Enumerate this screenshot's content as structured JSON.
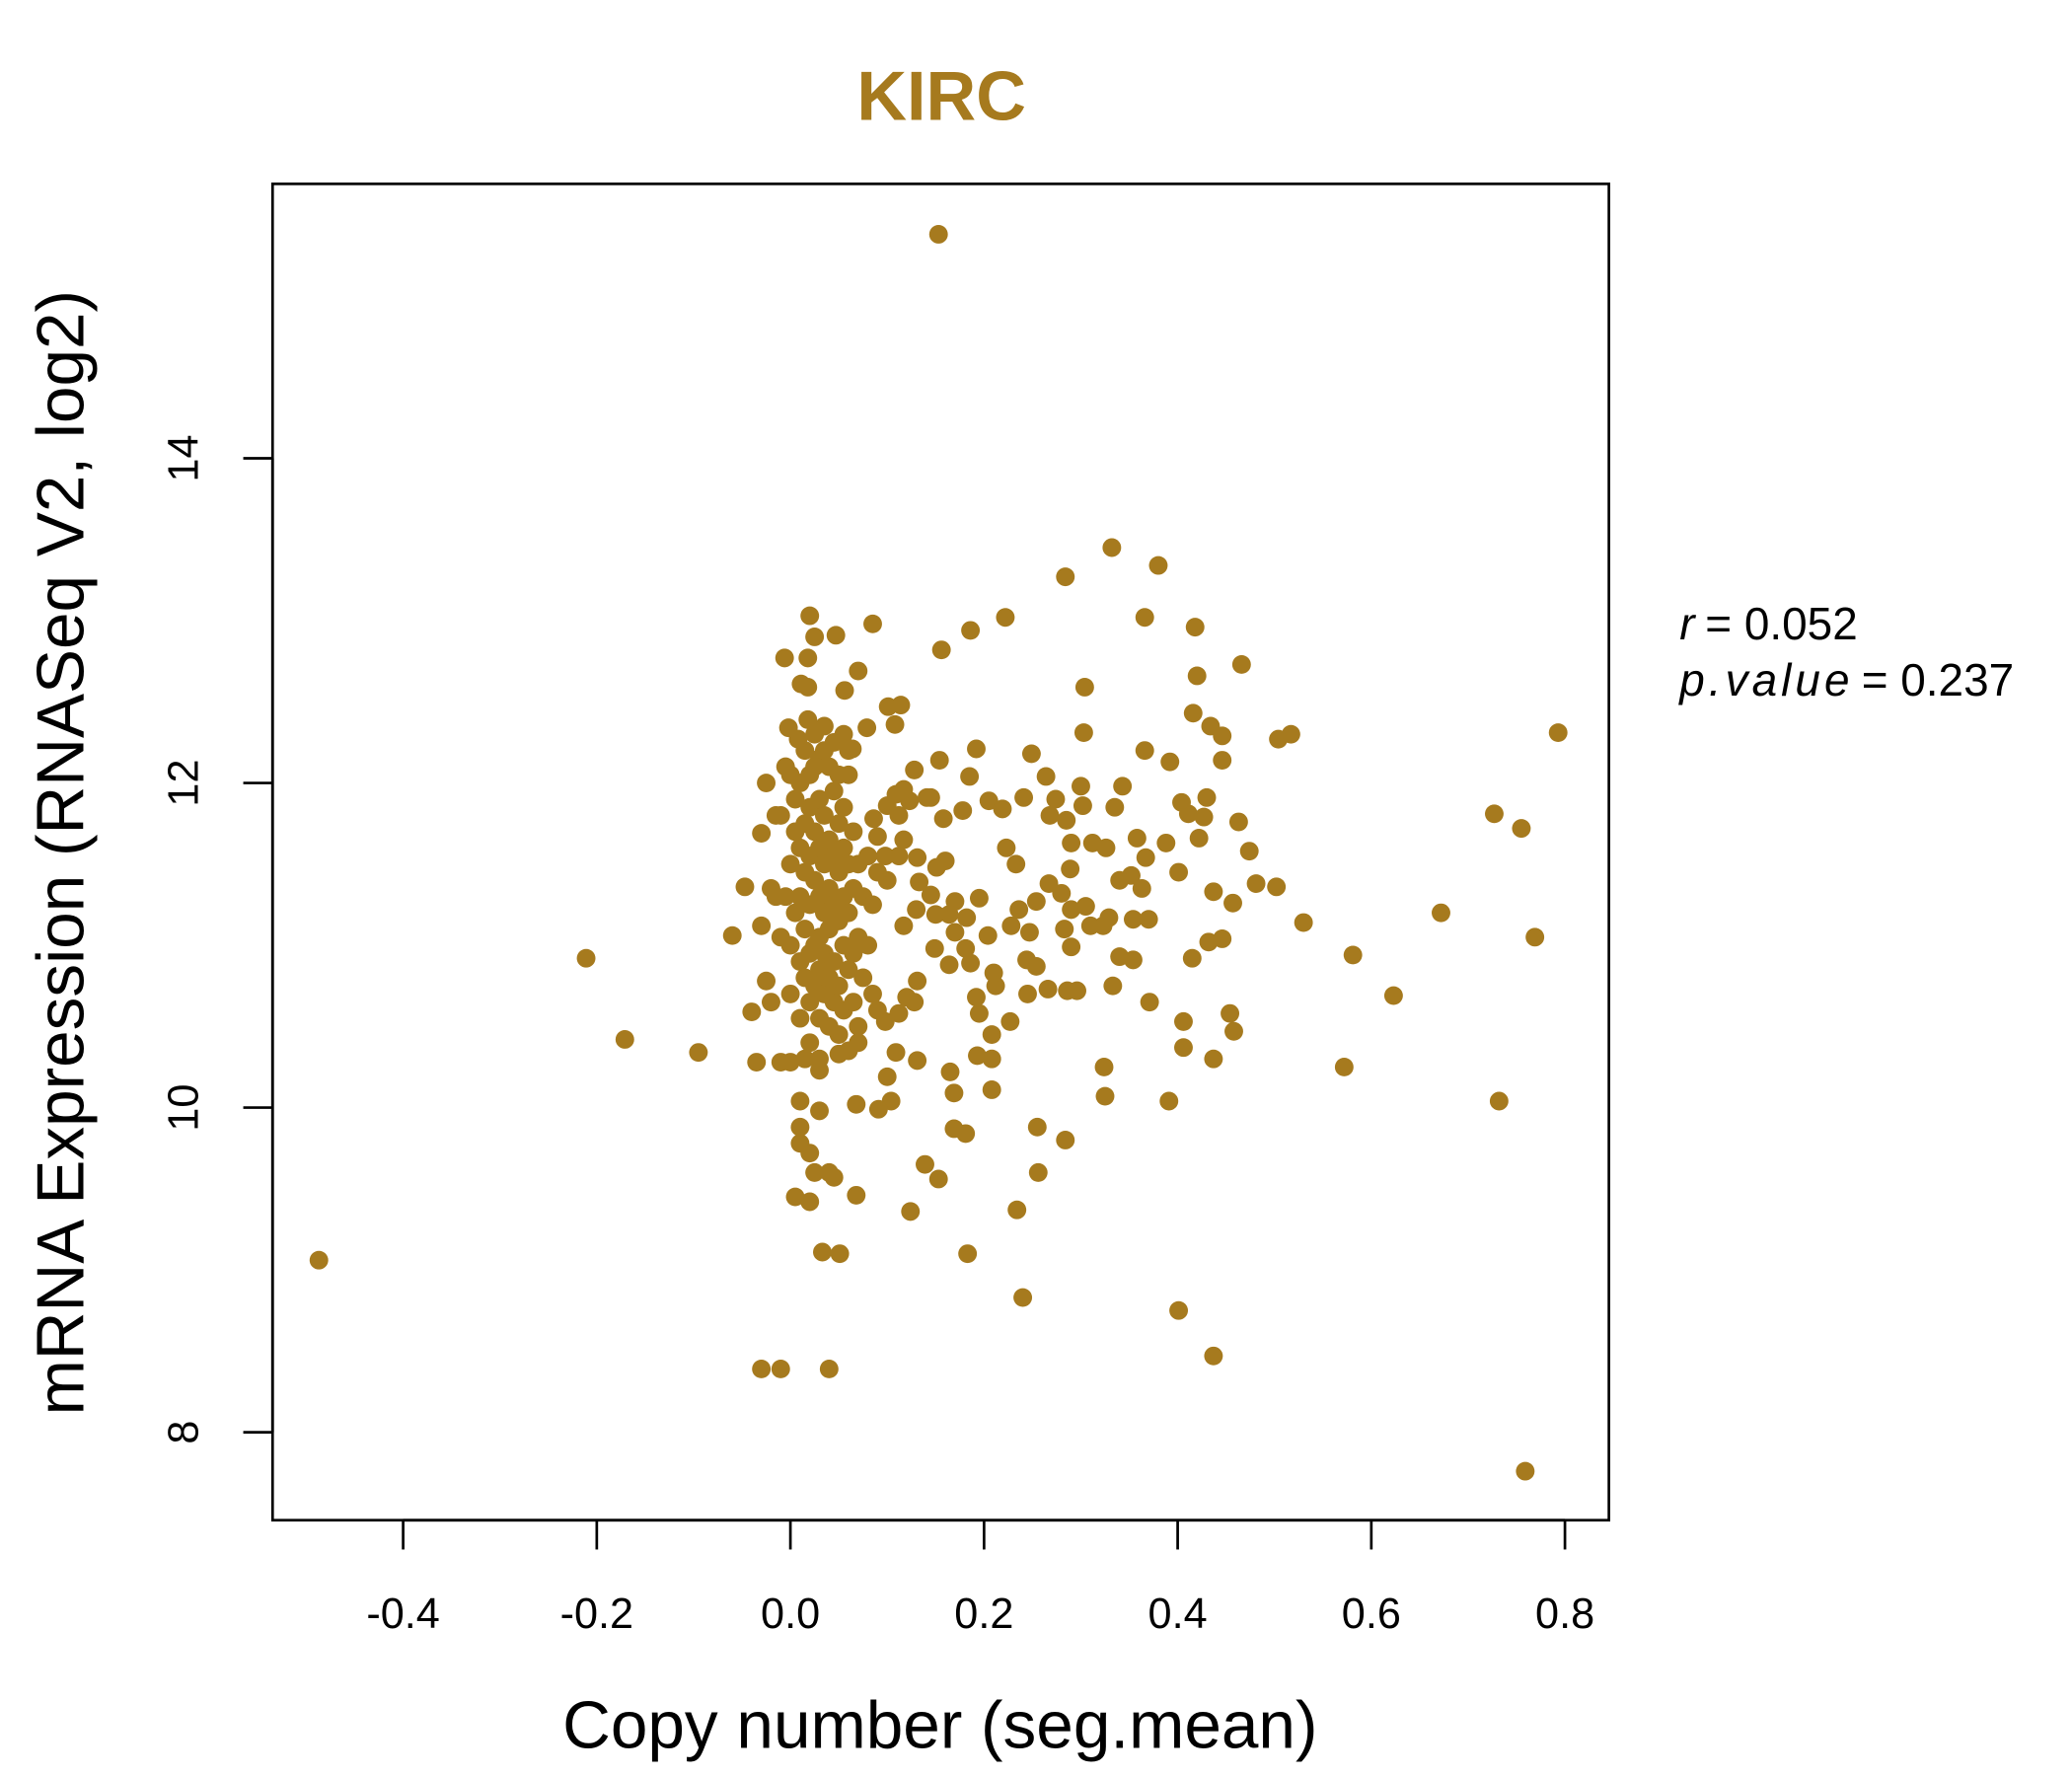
{
  "chart_data": {
    "type": "scatter",
    "title": "KIRC",
    "xlabel": "Copy number (seg.mean)",
    "ylabel": "mRNA Expression (RNASeq V2, log2)",
    "xlim": [
      -0.54,
      0.84
    ],
    "ylim": [
      7.55,
      15.8
    ],
    "x_ticks": [
      -0.4,
      -0.2,
      0.0,
      0.2,
      0.4,
      0.6,
      0.8
    ],
    "x_tick_labels": [
      "-0.4",
      "-0.2",
      "0.0",
      "0.2",
      "0.4",
      "0.6",
      "0.8"
    ],
    "y_ticks": [
      8,
      10,
      12,
      14
    ],
    "y_tick_labels": [
      "8",
      "10",
      "12",
      "14"
    ],
    "grid": false,
    "point_color": "#A67A1E",
    "title_color": "#A67A1E",
    "annotations": {
      "r_label": "r",
      "r_value": "= 0.052",
      "p_label": "p.value",
      "p_value": "= 0.237"
    },
    "points": [
      [
        0.153,
        15.38
      ],
      [
        -0.487,
        9.06
      ],
      [
        -0.211,
        10.92
      ],
      [
        -0.171,
        10.42
      ],
      [
        -0.095,
        10.34
      ],
      [
        -0.03,
        8.39
      ],
      [
        -0.01,
        8.39
      ],
      [
        0.04,
        8.39
      ],
      [
        0.332,
        13.45
      ],
      [
        0.38,
        13.34
      ],
      [
        0.284,
        13.27
      ],
      [
        0.793,
        12.31
      ],
      [
        0.759,
        7.76
      ],
      [
        0.727,
        11.81
      ],
      [
        0.755,
        11.72
      ],
      [
        0.769,
        11.05
      ],
      [
        0.732,
        10.04
      ],
      [
        0.672,
        11.2
      ],
      [
        0.623,
        10.69
      ],
      [
        0.581,
        10.94
      ],
      [
        0.572,
        10.25
      ],
      [
        0.53,
        11.14
      ],
      [
        0.517,
        12.3
      ],
      [
        0.504,
        12.27
      ],
      [
        0.466,
        12.73
      ],
      [
        0.418,
        12.96
      ],
      [
        0.366,
        13.02
      ],
      [
        0.222,
        13.02
      ],
      [
        0.186,
        12.94
      ],
      [
        0.156,
        12.82
      ],
      [
        0.085,
        12.98
      ],
      [
        0.401,
        8.75
      ],
      [
        0.437,
        8.47
      ],
      [
        0.24,
        8.83
      ],
      [
        0.183,
        9.1
      ],
      [
        0.033,
        9.11
      ],
      [
        0.051,
        9.1
      ],
      [
        0.391,
        10.04
      ],
      [
        0.284,
        9.8
      ],
      [
        0.255,
        9.88
      ],
      [
        0.256,
        9.6
      ],
      [
        0.234,
        9.37
      ],
      [
        0.124,
        9.36
      ],
      [
        0.068,
        9.46
      ],
      [
        0.153,
        9.56
      ],
      [
        0.139,
        9.65
      ],
      [
        0.325,
        10.07
      ],
      [
        0.324,
        10.25
      ],
      [
        0.208,
        10.11
      ],
      [
        0.169,
        10.09
      ],
      [
        0.181,
        9.84
      ],
      [
        0.169,
        9.87
      ],
      [
        0.437,
        10.3
      ],
      [
        0.406,
        10.37
      ],
      [
        0.406,
        10.53
      ],
      [
        0.458,
        10.47
      ],
      [
        0.454,
        10.58
      ],
      [
        0.371,
        10.65
      ],
      [
        0.415,
        10.92
      ],
      [
        0.432,
        11.02
      ],
      [
        0.446,
        11.04
      ],
      [
        0.401,
        11.45
      ],
      [
        0.437,
        11.33
      ],
      [
        0.457,
        11.26
      ],
      [
        0.481,
        11.38
      ],
      [
        0.502,
        11.36
      ],
      [
        0.474,
        11.58
      ],
      [
        0.463,
        11.76
      ],
      [
        0.422,
        11.66
      ],
      [
        0.427,
        11.79
      ],
      [
        0.411,
        11.81
      ],
      [
        0.404,
        11.88
      ],
      [
        0.43,
        11.91
      ],
      [
        0.388,
        11.63
      ],
      [
        0.392,
        12.13
      ],
      [
        0.446,
        12.14
      ],
      [
        0.446,
        12.29
      ],
      [
        0.434,
        12.35
      ],
      [
        0.416,
        12.43
      ],
      [
        0.42,
        12.66
      ],
      [
        0.366,
        12.2
      ],
      [
        0.367,
        11.54
      ],
      [
        0.358,
        11.66
      ],
      [
        0.352,
        11.43
      ],
      [
        0.363,
        11.35
      ],
      [
        0.37,
        11.16
      ],
      [
        0.354,
        11.16
      ],
      [
        0.354,
        10.91
      ],
      [
        0.34,
        10.93
      ],
      [
        0.333,
        10.75
      ],
      [
        0.329,
        11.17
      ],
      [
        0.323,
        11.12
      ],
      [
        0.31,
        11.12
      ],
      [
        0.305,
        11.24
      ],
      [
        0.296,
        10.72
      ],
      [
        0.286,
        10.72
      ],
      [
        0.29,
        10.99
      ],
      [
        0.283,
        11.1
      ],
      [
        0.29,
        11.22
      ],
      [
        0.28,
        11.32
      ],
      [
        0.289,
        11.47
      ],
      [
        0.29,
        11.63
      ],
      [
        0.312,
        11.63
      ],
      [
        0.326,
        11.6
      ],
      [
        0.34,
        11.4
      ],
      [
        0.335,
        11.85
      ],
      [
        0.343,
        11.98
      ],
      [
        0.3,
        11.98
      ],
      [
        0.302,
        11.86
      ],
      [
        0.303,
        12.31
      ],
      [
        0.304,
        12.59
      ],
      [
        0.249,
        12.18
      ],
      [
        0.264,
        12.04
      ],
      [
        0.274,
        11.9
      ],
      [
        0.268,
        11.8
      ],
      [
        0.285,
        11.77
      ],
      [
        0.241,
        11.91
      ],
      [
        0.223,
        11.6
      ],
      [
        0.233,
        11.5
      ],
      [
        0.267,
        11.38
      ],
      [
        0.254,
        11.27
      ],
      [
        0.236,
        11.22
      ],
      [
        0.228,
        11.12
      ],
      [
        0.247,
        11.08
      ],
      [
        0.244,
        10.91
      ],
      [
        0.254,
        10.87
      ],
      [
        0.266,
        10.73
      ],
      [
        0.245,
        10.7
      ],
      [
        0.227,
        10.53
      ],
      [
        0.208,
        10.45
      ],
      [
        0.193,
        10.32
      ],
      [
        0.208,
        10.3
      ],
      [
        0.165,
        10.22
      ],
      [
        0.204,
        11.06
      ],
      [
        0.212,
        10.75
      ],
      [
        0.21,
        10.83
      ],
      [
        0.186,
        10.89
      ],
      [
        0.192,
        10.68
      ],
      [
        0.195,
        10.58
      ],
      [
        0.17,
        11.08
      ],
      [
        0.181,
        10.98
      ],
      [
        0.17,
        11.27
      ],
      [
        0.182,
        11.17
      ],
      [
        0.195,
        11.29
      ],
      [
        0.164,
        11.19
      ],
      [
        0.15,
        11.19
      ],
      [
        0.145,
        11.31
      ],
      [
        0.151,
        11.48
      ],
      [
        0.16,
        11.52
      ],
      [
        0.145,
        11.91
      ],
      [
        0.158,
        11.78
      ],
      [
        0.178,
        11.83
      ],
      [
        0.185,
        12.04
      ],
      [
        0.205,
        11.89
      ],
      [
        0.219,
        11.84
      ],
      [
        0.192,
        12.21
      ],
      [
        0.154,
        12.14
      ],
      [
        0.128,
        12.08
      ],
      [
        0.141,
        11.91
      ],
      [
        0.123,
        11.89
      ],
      [
        0.117,
        11.96
      ],
      [
        0.112,
        11.8
      ],
      [
        0.117,
        11.65
      ],
      [
        0.131,
        11.54
      ],
      [
        0.112,
        11.55
      ],
      [
        0.133,
        11.39
      ],
      [
        0.13,
        11.22
      ],
      [
        0.117,
        11.12
      ],
      [
        0.149,
        10.98
      ],
      [
        0.164,
        10.88
      ],
      [
        0.131,
        10.78
      ],
      [
        0.12,
        10.68
      ],
      [
        0.128,
        10.65
      ],
      [
        0.112,
        10.58
      ],
      [
        0.098,
        10.53
      ],
      [
        0.109,
        10.34
      ],
      [
        0.1,
        10.19
      ],
      [
        0.104,
        10.04
      ],
      [
        0.091,
        9.99
      ],
      [
        0.131,
        10.29
      ],
      [
        0.068,
        10.02
      ],
      [
        0.1,
        11.4
      ],
      [
        0.098,
        11.55
      ],
      [
        0.09,
        11.67
      ],
      [
        0.086,
        11.78
      ],
      [
        0.1,
        11.86
      ],
      [
        0.109,
        11.93
      ],
      [
        0.101,
        12.47
      ],
      [
        0.114,
        12.48
      ],
      [
        0.108,
        12.36
      ],
      [
        0.079,
        12.34
      ],
      [
        0.064,
        12.21
      ],
      [
        0.07,
        12.69
      ],
      [
        0.056,
        12.57
      ],
      [
        0.047,
        12.91
      ],
      [
        0.018,
        12.77
      ],
      [
        0.025,
        12.9
      ],
      [
        0.02,
        13.03
      ],
      [
        -0.006,
        12.77
      ],
      [
        0.011,
        12.61
      ],
      [
        0.018,
        12.59
      ],
      [
        -0.002,
        12.34
      ],
      [
        0.008,
        12.27
      ],
      [
        0.018,
        12.39
      ],
      [
        -0.047,
        11.36
      ],
      [
        -0.06,
        11.06
      ],
      [
        -0.03,
        11.69
      ],
      [
        -0.025,
        12.0
      ],
      [
        -0.04,
        10.59
      ],
      [
        -0.035,
        10.28
      ],
      [
        -0.03,
        11.12
      ],
      [
        -0.025,
        10.78
      ],
      [
        -0.02,
        10.65
      ],
      [
        -0.01,
        10.28
      ],
      [
        0.0,
        10.28
      ],
      [
        0.005,
        9.45
      ],
      [
        0.01,
        9.78
      ],
      [
        0.01,
        9.88
      ],
      [
        0.02,
        9.72
      ],
      [
        0.025,
        9.6
      ],
      [
        0.03,
        9.98
      ],
      [
        0.02,
        9.42
      ],
      [
        0.04,
        9.6
      ],
      [
        0.045,
        9.57
      ],
      [
        0.01,
        10.04
      ],
      [
        0.03,
        10.23
      ],
      [
        0.03,
        10.3
      ],
      [
        0.05,
        10.33
      ],
      [
        -0.015,
        11.3
      ],
      [
        -0.01,
        11.8
      ],
      [
        -0.005,
        12.1
      ],
      [
        0.0,
        11.5
      ],
      [
        0.0,
        11.0
      ],
      [
        0.0,
        10.7
      ],
      [
        0.005,
        11.9
      ],
      [
        0.005,
        11.2
      ],
      [
        0.01,
        12.0
      ],
      [
        0.01,
        11.6
      ],
      [
        0.01,
        11.3
      ],
      [
        0.01,
        10.9
      ],
      [
        0.01,
        10.55
      ],
      [
        0.015,
        12.2
      ],
      [
        0.015,
        11.75
      ],
      [
        0.015,
        11.45
      ],
      [
        0.015,
        11.1
      ],
      [
        0.015,
        10.8
      ],
      [
        0.02,
        12.05
      ],
      [
        0.02,
        11.85
      ],
      [
        0.02,
        11.55
      ],
      [
        0.02,
        11.25
      ],
      [
        0.02,
        10.95
      ],
      [
        0.02,
        10.65
      ],
      [
        0.02,
        10.4
      ],
      [
        0.025,
        12.3
      ],
      [
        0.025,
        11.7
      ],
      [
        0.025,
        11.4
      ],
      [
        0.025,
        11.0
      ],
      [
        0.025,
        10.75
      ],
      [
        0.03,
        12.15
      ],
      [
        0.03,
        11.9
      ],
      [
        0.03,
        11.6
      ],
      [
        0.03,
        11.3
      ],
      [
        0.03,
        11.05
      ],
      [
        0.03,
        10.85
      ],
      [
        0.03,
        10.55
      ],
      [
        0.035,
        12.35
      ],
      [
        0.035,
        11.8
      ],
      [
        0.035,
        11.5
      ],
      [
        0.035,
        11.2
      ],
      [
        0.035,
        10.95
      ],
      [
        0.035,
        10.7
      ],
      [
        0.04,
        12.1
      ],
      [
        0.04,
        11.65
      ],
      [
        0.04,
        11.35
      ],
      [
        0.04,
        11.1
      ],
      [
        0.04,
        10.8
      ],
      [
        0.04,
        10.5
      ],
      [
        0.045,
        12.25
      ],
      [
        0.045,
        11.95
      ],
      [
        0.045,
        11.55
      ],
      [
        0.045,
        11.25
      ],
      [
        0.045,
        10.9
      ],
      [
        0.045,
        10.65
      ],
      [
        0.05,
        12.05
      ],
      [
        0.05,
        11.75
      ],
      [
        0.05,
        11.45
      ],
      [
        0.05,
        11.15
      ],
      [
        0.05,
        10.75
      ],
      [
        0.05,
        10.45
      ],
      [
        0.055,
        11.85
      ],
      [
        0.055,
        11.6
      ],
      [
        0.055,
        11.3
      ],
      [
        0.055,
        11.0
      ],
      [
        0.055,
        10.6
      ],
      [
        0.06,
        12.2
      ],
      [
        0.06,
        11.5
      ],
      [
        0.06,
        11.2
      ],
      [
        0.06,
        10.85
      ],
      [
        0.065,
        11.7
      ],
      [
        0.065,
        11.35
      ],
      [
        0.065,
        10.95
      ],
      [
        0.065,
        10.65
      ],
      [
        0.07,
        11.5
      ],
      [
        0.07,
        11.05
      ],
      [
        0.07,
        10.5
      ],
      [
        0.075,
        11.3
      ],
      [
        0.075,
        10.8
      ],
      [
        0.08,
        11.55
      ],
      [
        0.08,
        11.0
      ],
      [
        0.085,
        11.25
      ],
      [
        0.085,
        10.7
      ],
      [
        0.09,
        11.45
      ],
      [
        0.09,
        10.6
      ],
      [
        0.06,
        10.35
      ],
      [
        0.07,
        10.4
      ],
      [
        0.015,
        10.3
      ],
      [
        -0.01,
        11.05
      ],
      [
        -0.005,
        11.3
      ],
      [
        -0.02,
        11.35
      ],
      [
        0.005,
        11.7
      ],
      [
        0.0,
        12.05
      ],
      [
        -0.015,
        11.8
      ],
      [
        0.025,
        12.1
      ],
      [
        0.035,
        12.2
      ],
      [
        0.055,
        12.3
      ],
      [
        0.06,
        12.05
      ]
    ]
  }
}
